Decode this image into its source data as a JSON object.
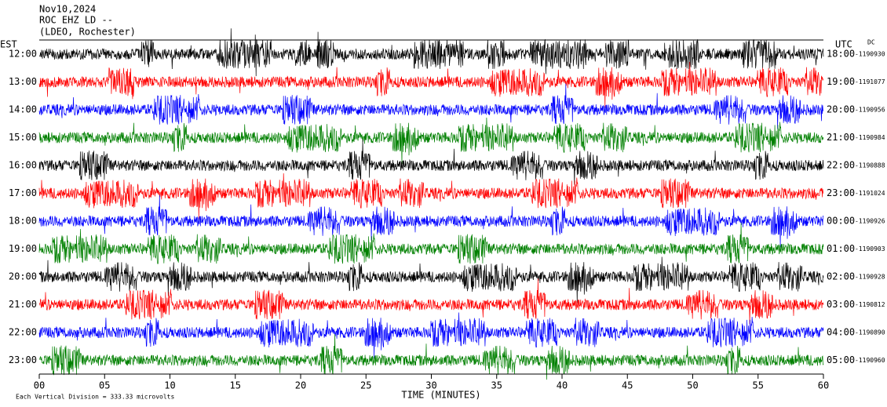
{
  "header": {
    "date": "Nov10,2024",
    "station": "ROC EHZ LD --",
    "location": "(LDEO, Rochester)"
  },
  "chart_data": {
    "type": "helicorder",
    "left_zone": "EST",
    "right_zone": "UTC",
    "dc_label": "DC",
    "xlabel": "TIME (MINUTES)",
    "xlim": [
      0,
      60
    ],
    "xticks": [
      {
        "value": 0,
        "label": "00"
      },
      {
        "value": 5,
        "label": "05"
      },
      10,
      15,
      20,
      25,
      30,
      35,
      40,
      45,
      50,
      55,
      60
    ],
    "rows": [
      {
        "local": "12:00",
        "utc": "18:00",
        "dc": "-1190930",
        "color": "#000000"
      },
      {
        "local": "13:00",
        "utc": "19:00",
        "dc": "-1191077",
        "color": "#ff0000"
      },
      {
        "local": "14:00",
        "utc": "20:00",
        "dc": "-1190956",
        "color": "#0000ff"
      },
      {
        "local": "15:00",
        "utc": "21:00",
        "dc": "-1190984",
        "color": "#008000"
      },
      {
        "local": "16:00",
        "utc": "22:00",
        "dc": "-1190888",
        "color": "#000000"
      },
      {
        "local": "17:00",
        "utc": "23:00",
        "dc": "-1191024",
        "color": "#ff0000"
      },
      {
        "local": "18:00",
        "utc": "00:00",
        "dc": "-1190926",
        "color": "#0000ff"
      },
      {
        "local": "19:00",
        "utc": "01:00",
        "dc": "-1190903",
        "color": "#008000"
      },
      {
        "local": "20:00",
        "utc": "02:00",
        "dc": "-1190928",
        "color": "#000000"
      },
      {
        "local": "21:00",
        "utc": "03:00",
        "dc": "-1190812",
        "color": "#ff0000"
      },
      {
        "local": "22:00",
        "utc": "04:00",
        "dc": "-1190890",
        "color": "#0000ff"
      },
      {
        "local": "23:00",
        "utc": "05:00",
        "dc": "-1190960",
        "color": "#008000"
      }
    ]
  },
  "footer": "Each Vertical Division =  333.33 microvolts"
}
